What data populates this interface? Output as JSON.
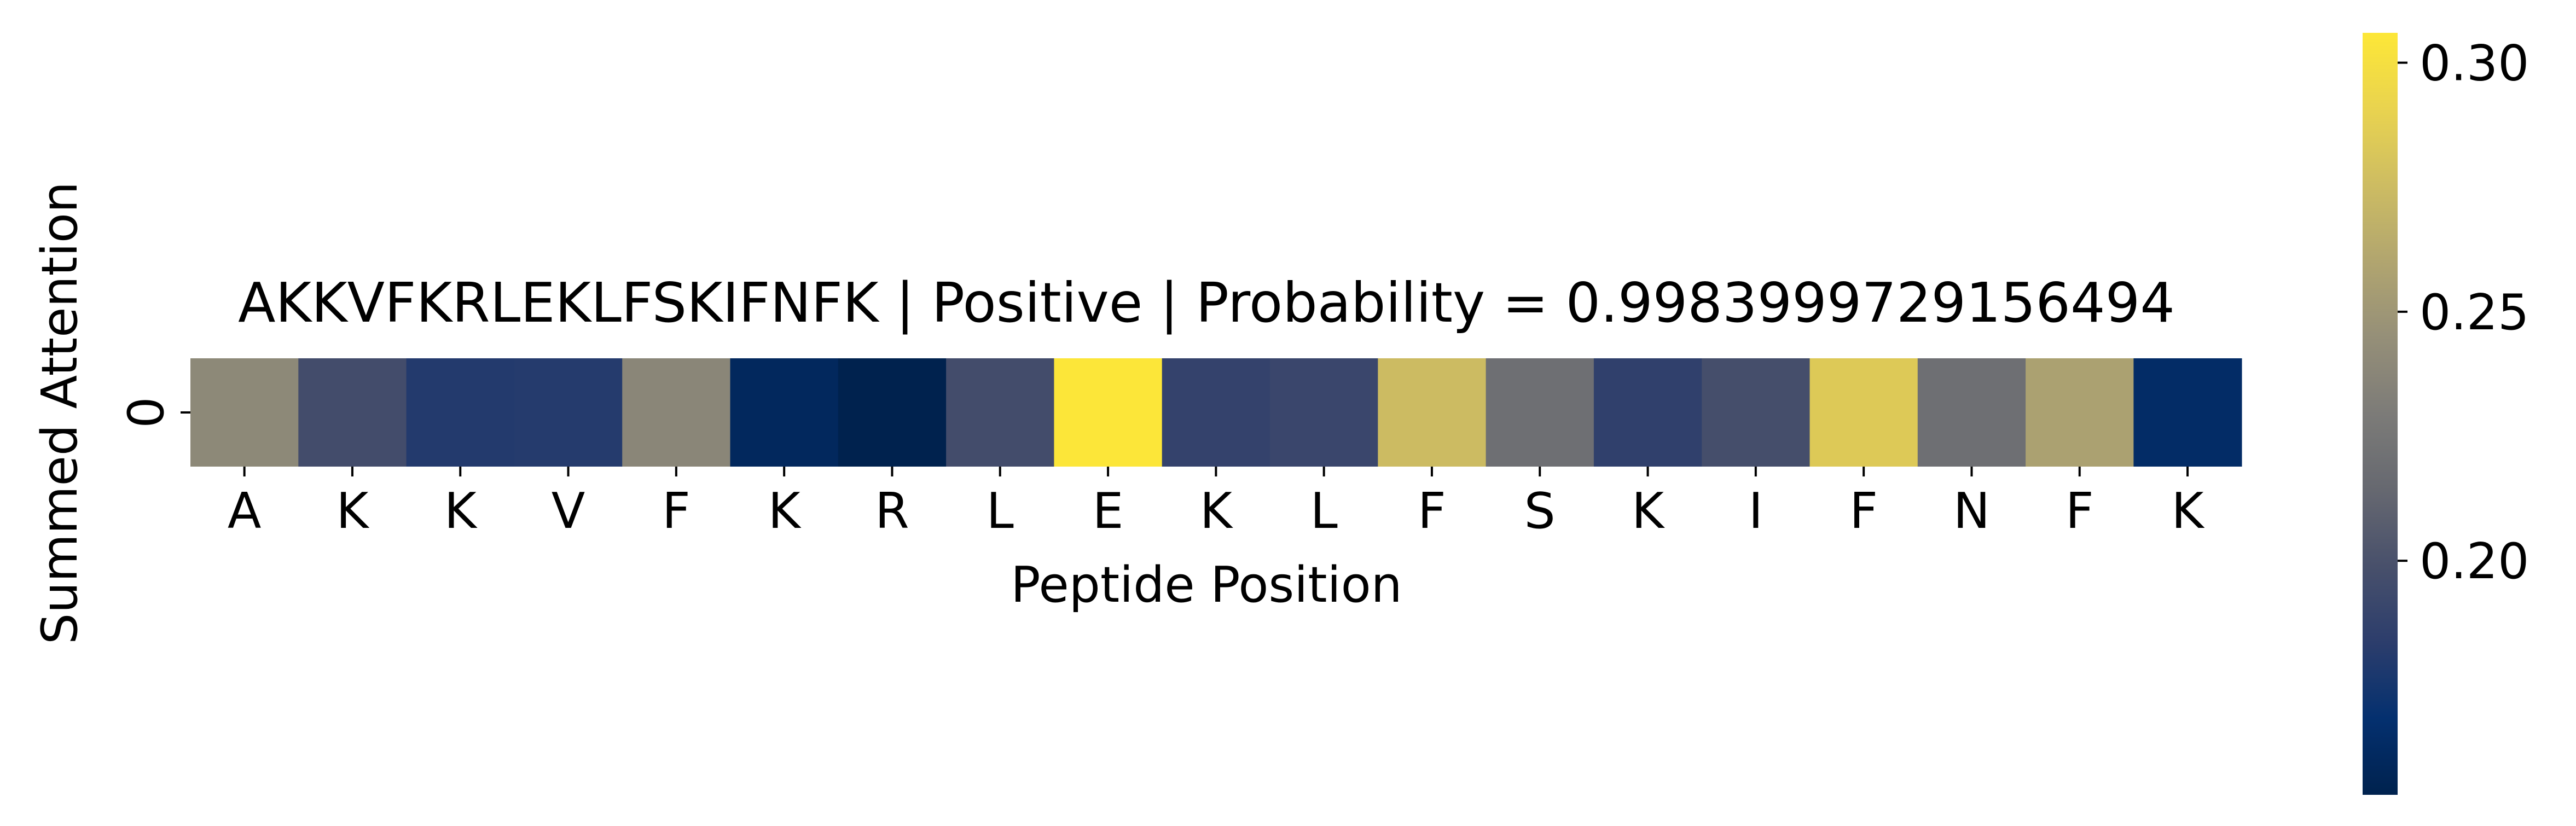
{
  "chart_data": {
    "type": "heatmap",
    "title": "AKKVFKRLEKLFSKIFNFK | Positive | Probability = 0.9983999729156494",
    "xlabel": "Peptide Position",
    "ylabel": "Summed Attention",
    "x_categories": [
      "A",
      "K",
      "K",
      "V",
      "F",
      "K",
      "R",
      "L",
      "E",
      "K",
      "L",
      "F",
      "S",
      "K",
      "I",
      "F",
      "N",
      "F",
      "K"
    ],
    "y_categories": [
      "0"
    ],
    "values": [
      [
        0.24,
        0.196,
        0.18,
        0.181,
        0.238,
        0.16,
        0.148,
        0.196,
        0.305,
        0.188,
        0.191,
        0.275,
        0.22,
        0.186,
        0.197,
        0.284,
        0.22,
        0.257,
        0.164
      ]
    ],
    "colormap": "cividis",
    "colorbar": {
      "range": [
        0.153,
        0.306
      ],
      "ticks": [
        0.2,
        0.25,
        0.3
      ],
      "tick_labels": [
        "0.20",
        "0.25",
        "0.30"
      ]
    },
    "grid": false,
    "legend": "colorbar-right"
  }
}
